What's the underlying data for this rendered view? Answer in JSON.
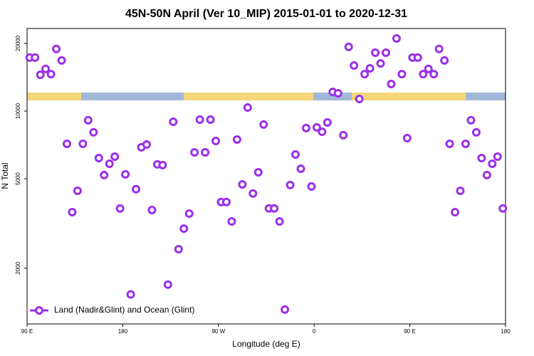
{
  "chart_data": {
    "type": "scatter",
    "title": "45N-50N April (Ver 10_MIP)   2015-01-01 to 2020-12-31",
    "x_label": "Longitude (deg E)",
    "y_label": "N Total",
    "xlim": [
      90,
      540
    ],
    "xticks": [
      {
        "value": 90,
        "label": "90 E"
      },
      {
        "value": 180,
        "label": "180"
      },
      {
        "value": 270,
        "label": "90 W"
      },
      {
        "value": 360,
        "label": "0"
      },
      {
        "value": 450,
        "label": "90 E"
      },
      {
        "value": 540,
        "label": "180"
      }
    ],
    "ylim": [
      1130,
      23300
    ],
    "yticks": [
      2000,
      5000,
      10000,
      20000
    ],
    "log_y": true,
    "legend": "lower left",
    "series": [
      {
        "name": "Land (Nadir&Glint) and Ocean (Glint)",
        "color": "#9b30e8",
        "x": [
          92.5,
          97.5,
          102.5,
          107.5,
          112.5,
          117.5,
          122.5,
          127.5,
          132.5,
          137.5,
          142.5,
          147.5,
          152.5,
          157.5,
          162.5,
          167.5,
          172.5,
          177.5,
          182.5,
          187.5,
          192.5,
          197.5,
          202.5,
          207.5,
          212.5,
          217.5,
          222.5,
          227.5,
          232.5,
          237.5,
          242.5,
          247.5,
          252.5,
          257.5,
          262.5,
          267.5,
          272.5,
          277.5,
          282.5,
          287.5,
          292.5,
          297.5,
          302.5,
          307.5,
          312.5,
          317.5,
          322.5,
          327.5,
          332.5,
          337.5,
          342.5,
          347.5,
          352.5,
          357.5,
          362.5,
          367.5,
          372.5,
          377.5,
          382.5,
          387.5,
          392.5,
          397.5,
          402.5,
          407.5,
          412.5,
          417.5,
          422.5,
          427.5,
          432.5,
          437.5,
          442.5,
          447.5,
          452.5,
          457.5,
          462.5,
          467.5,
          472.5,
          477.5,
          482.5,
          487.5,
          492.5,
          497.5,
          502.5,
          507.5,
          512.5,
          517.5,
          522.5,
          527.5,
          532.5,
          537.5
        ],
        "values": [
          17300,
          17300,
          14500,
          15400,
          14600,
          18900,
          16800,
          7150,
          3550,
          4420,
          7150,
          9100,
          8040,
          6180,
          5190,
          5830,
          6270,
          3690,
          5230,
          1530,
          4490,
          6900,
          7100,
          3630,
          5790,
          5750,
          1690,
          8960,
          2430,
          3000,
          3500,
          6550,
          9160,
          6550,
          9160,
          7360,
          3940,
          3940,
          3230,
          7470,
          4720,
          10370,
          4300,
          5340,
          8710,
          3690,
          3690,
          3230,
          1310,
          4690,
          6410,
          5540,
          8400,
          4620,
          8460,
          8090,
          8900,
          12170,
          12000,
          7810,
          19300,
          15940,
          11320,
          14600,
          15490,
          18180,
          16290,
          18180,
          13190,
          21030,
          14600,
          7580,
          17300,
          17300,
          14600,
          15400,
          14600,
          18900,
          16800,
          7150,
          3550,
          4420,
          7150,
          9100,
          8040,
          6180,
          5190,
          5830,
          6270,
          3690
        ]
      }
    ]
  }
}
